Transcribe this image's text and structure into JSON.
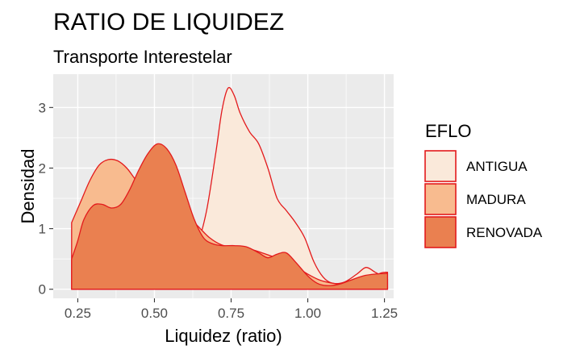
{
  "chart_data": {
    "type": "area",
    "title": "RATIO DE LIQUIDEZ",
    "subtitle": "Transporte Interestelar",
    "xlabel": "Liquidez (ratio)",
    "ylabel": "Densidad",
    "xlim": [
      0.17,
      1.28
    ],
    "ylim": [
      -0.15,
      3.55
    ],
    "xticks": [
      {
        "value": 0.25,
        "label": "0.25"
      },
      {
        "value": 0.5,
        "label": "0.50"
      },
      {
        "value": 0.75,
        "label": "0.75"
      },
      {
        "value": 1.0,
        "label": "1.00"
      },
      {
        "value": 1.25,
        "label": "1.25"
      }
    ],
    "yticks": [
      {
        "value": 0,
        "label": "0"
      },
      {
        "value": 1,
        "label": "1"
      },
      {
        "value": 2,
        "label": "2"
      },
      {
        "value": 3,
        "label": "3"
      }
    ],
    "grid": true,
    "legend": {
      "title": "EFLO",
      "placement": "right"
    },
    "outline_color": "#e31a1c",
    "panel_color": "#ebebeb",
    "series": [
      {
        "name": "ANTIGUA",
        "color": "#fae9da",
        "points": [
          [
            0.23,
            0
          ],
          [
            0.3,
            0
          ],
          [
            0.36,
            0
          ],
          [
            0.4,
            0.02
          ],
          [
            0.44,
            0.08
          ],
          [
            0.48,
            0.2
          ],
          [
            0.52,
            0.35
          ],
          [
            0.55,
            0.5
          ],
          [
            0.58,
            0.64
          ],
          [
            0.61,
            0.6
          ],
          [
            0.64,
            0.75
          ],
          [
            0.67,
            1.3
          ],
          [
            0.7,
            2.25
          ],
          [
            0.72,
            2.95
          ],
          [
            0.74,
            3.32
          ],
          [
            0.76,
            3.2
          ],
          [
            0.78,
            2.9
          ],
          [
            0.81,
            2.6
          ],
          [
            0.84,
            2.4
          ],
          [
            0.87,
            2.0
          ],
          [
            0.9,
            1.5
          ],
          [
            0.93,
            1.3
          ],
          [
            0.96,
            1.1
          ],
          [
            0.99,
            0.85
          ],
          [
            1.02,
            0.45
          ],
          [
            1.05,
            0.2
          ],
          [
            1.08,
            0.1
          ],
          [
            1.12,
            0.12
          ],
          [
            1.16,
            0.25
          ],
          [
            1.19,
            0.36
          ],
          [
            1.22,
            0.28
          ],
          [
            1.25,
            0.2
          ],
          [
            1.26,
            0.17
          ]
        ]
      },
      {
        "name": "MADURA",
        "color": "#f8bb8f",
        "points": [
          [
            0.23,
            1.1
          ],
          [
            0.26,
            1.45
          ],
          [
            0.29,
            1.8
          ],
          [
            0.32,
            2.05
          ],
          [
            0.35,
            2.14
          ],
          [
            0.38,
            2.12
          ],
          [
            0.41,
            2.0
          ],
          [
            0.44,
            1.8
          ],
          [
            0.47,
            1.65
          ],
          [
            0.5,
            1.55
          ],
          [
            0.53,
            1.48
          ],
          [
            0.56,
            1.4
          ],
          [
            0.6,
            1.25
          ],
          [
            0.64,
            1.05
          ],
          [
            0.68,
            0.85
          ],
          [
            0.72,
            0.73
          ],
          [
            0.76,
            0.7
          ],
          [
            0.8,
            0.68
          ],
          [
            0.84,
            0.62
          ],
          [
            0.88,
            0.55
          ],
          [
            0.92,
            0.48
          ],
          [
            0.96,
            0.38
          ],
          [
            1.0,
            0.25
          ],
          [
            1.04,
            0.15
          ],
          [
            1.08,
            0.1
          ],
          [
            1.12,
            0.08
          ],
          [
            1.16,
            0.1
          ],
          [
            1.2,
            0.18
          ],
          [
            1.24,
            0.27
          ],
          [
            1.26,
            0.28
          ]
        ]
      },
      {
        "name": "RENOVADA",
        "color": "#ea8050",
        "points": [
          [
            0.23,
            0.5
          ],
          [
            0.25,
            0.8
          ],
          [
            0.27,
            1.15
          ],
          [
            0.3,
            1.38
          ],
          [
            0.33,
            1.4
          ],
          [
            0.36,
            1.34
          ],
          [
            0.39,
            1.4
          ],
          [
            0.42,
            1.65
          ],
          [
            0.45,
            1.98
          ],
          [
            0.48,
            2.25
          ],
          [
            0.51,
            2.4
          ],
          [
            0.54,
            2.32
          ],
          [
            0.57,
            2.05
          ],
          [
            0.6,
            1.6
          ],
          [
            0.63,
            1.15
          ],
          [
            0.66,
            0.85
          ],
          [
            0.69,
            0.75
          ],
          [
            0.72,
            0.72
          ],
          [
            0.76,
            0.72
          ],
          [
            0.8,
            0.7
          ],
          [
            0.84,
            0.6
          ],
          [
            0.87,
            0.52
          ],
          [
            0.9,
            0.58
          ],
          [
            0.93,
            0.6
          ],
          [
            0.96,
            0.45
          ],
          [
            1.0,
            0.22
          ],
          [
            1.03,
            0.1
          ],
          [
            1.06,
            0.06
          ],
          [
            1.1,
            0.08
          ],
          [
            1.14,
            0.15
          ],
          [
            1.18,
            0.22
          ],
          [
            1.22,
            0.25
          ],
          [
            1.26,
            0.26
          ]
        ]
      }
    ]
  }
}
